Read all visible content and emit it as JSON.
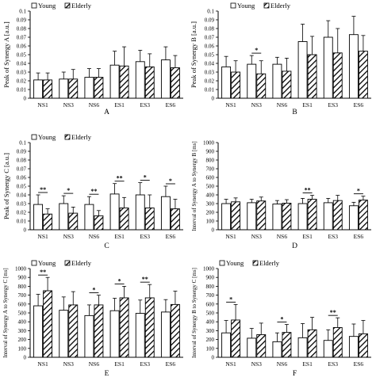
{
  "legend_labels": {
    "young": "Young",
    "elderly": "Elderly"
  },
  "colors": {
    "young_fill": "#ffffff",
    "elderly_hatch": "#000000",
    "axis": "#000000",
    "error_bar": "#000000"
  },
  "chart_data": [
    {
      "id": "A",
      "type": "bar",
      "panel_label": "A",
      "ylabel": "Peak of Synergy A [a.u.]",
      "ylim": [
        0,
        0.1
      ],
      "yticks": [
        "0",
        "0.01",
        "0.02",
        "0.03",
        "0.04",
        "0.05",
        "0.06",
        "0.07",
        "0.08",
        "0.09",
        "0.1"
      ],
      "categories": [
        "NS1",
        "NS3",
        "NS6",
        "ES1",
        "ES3",
        "ES6"
      ],
      "legend_position": "top-left",
      "series": [
        {
          "name": "Young",
          "values": [
            0.021,
            0.022,
            0.024,
            0.038,
            0.042,
            0.044
          ],
          "errors": [
            0.008,
            0.008,
            0.01,
            0.016,
            0.013,
            0.015
          ]
        },
        {
          "name": "Elderly",
          "values": [
            0.021,
            0.022,
            0.024,
            0.037,
            0.036,
            0.035
          ],
          "errors": [
            0.008,
            0.011,
            0.01,
            0.022,
            0.015,
            0.014
          ]
        }
      ],
      "significance": [],
      "significance_label": "*"
    },
    {
      "id": "B",
      "type": "bar",
      "panel_label": "B",
      "ylabel": "Peak of Synergy B [a.u.]",
      "ylim": [
        0,
        0.1
      ],
      "yticks": [
        "0",
        "0.01",
        "0.02",
        "0.03",
        "0.04",
        "0.05",
        "0.06",
        "0.07",
        "0.08",
        "0.09",
        "0.1"
      ],
      "categories": [
        "NS1",
        "NS3",
        "NS6",
        "ES1",
        "ES3",
        "ES6"
      ],
      "legend_position": "top-center",
      "series": [
        {
          "name": "Young",
          "values": [
            0.036,
            0.039,
            0.039,
            0.065,
            0.07,
            0.073
          ],
          "errors": [
            0.012,
            0.01,
            0.008,
            0.02,
            0.019,
            0.021
          ]
        },
        {
          "name": "Elderly",
          "values": [
            0.03,
            0.028,
            0.031,
            0.05,
            0.052,
            0.054
          ],
          "errors": [
            0.013,
            0.015,
            0.015,
            0.021,
            0.028,
            0.018
          ]
        }
      ],
      "significance": [
        1
      ],
      "significance_label": "*"
    },
    {
      "id": "C",
      "type": "bar",
      "panel_label": "C",
      "ylabel": "Peak of Synergy C [a.u.]",
      "ylim": [
        0,
        0.1
      ],
      "yticks": [
        "0",
        "0.01",
        "0.02",
        "0.03",
        "0.04",
        "0.05",
        "0.06",
        "0.07",
        "0.08",
        "0.09",
        "0.1"
      ],
      "categories": [
        "NS1",
        "NS3",
        "NS6",
        "ES1",
        "ES3",
        "ES6"
      ],
      "legend_position": "top-left",
      "series": [
        {
          "name": "Young",
          "values": [
            0.029,
            0.03,
            0.029,
            0.041,
            0.04,
            0.038
          ],
          "errors": [
            0.011,
            0.009,
            0.009,
            0.012,
            0.014,
            0.012
          ]
        },
        {
          "name": "Elderly",
          "values": [
            0.018,
            0.019,
            0.016,
            0.025,
            0.025,
            0.024
          ],
          "errors": [
            0.006,
            0.007,
            0.006,
            0.012,
            0.015,
            0.011
          ]
        }
      ],
      "significance": [
        0,
        1,
        2,
        3,
        4,
        5
      ],
      "significance_labels": [
        "**",
        "*",
        "**",
        "**",
        "*",
        "*"
      ]
    },
    {
      "id": "D",
      "type": "bar",
      "panel_label": "D",
      "ylabel": "Interval of Synergy A to Synergy B [ms]",
      "ylim": [
        0,
        1000
      ],
      "yticks": [
        "0",
        "100",
        "200",
        "300",
        "400",
        "500",
        "600",
        "700",
        "800",
        "900",
        "1000"
      ],
      "categories": [
        "NS1",
        "NS3",
        "NS6",
        "ES1",
        "ES3",
        "ES6"
      ],
      "legend_position": "none",
      "series": [
        {
          "name": "Young",
          "values": [
            300,
            310,
            295,
            300,
            310,
            275
          ],
          "errors": [
            50,
            40,
            40,
            60,
            50,
            40
          ]
        },
        {
          "name": "Elderly",
          "values": [
            320,
            330,
            305,
            350,
            335,
            340
          ],
          "errors": [
            45,
            45,
            40,
            45,
            60,
            45
          ]
        }
      ],
      "significance": [
        3,
        5
      ],
      "significance_labels": [
        "**",
        "*"
      ]
    },
    {
      "id": "E",
      "type": "bar",
      "panel_label": "E",
      "ylabel": "Interval of Synergy A to Synergy C [ms]",
      "ylim": [
        0,
        1000
      ],
      "yticks": [
        "0",
        "100",
        "200",
        "300",
        "400",
        "500",
        "600",
        "700",
        "800",
        "900",
        "1000"
      ],
      "categories": [
        "NS1",
        "NS3",
        "NS6",
        "ES1",
        "ES3",
        "ES6"
      ],
      "legend_position": "top-left",
      "series": [
        {
          "name": "Young",
          "values": [
            580,
            530,
            470,
            525,
            495,
            510
          ],
          "errors": [
            130,
            150,
            120,
            140,
            150,
            140
          ]
        },
        {
          "name": "Elderly",
          "values": [
            750,
            590,
            590,
            670,
            670,
            595
          ],
          "errors": [
            150,
            150,
            110,
            130,
            150,
            150
          ]
        }
      ],
      "significance": [
        0,
        2,
        3,
        4
      ],
      "significance_labels": [
        "**",
        "*",
        "*",
        "**"
      ]
    },
    {
      "id": "F",
      "type": "bar",
      "panel_label": "F",
      "ylabel": "Interval of Synergy B to Synergy C [ms]",
      "ylim": [
        0,
        1000
      ],
      "yticks": [
        "0",
        "100",
        "200",
        "300",
        "400",
        "500",
        "600",
        "700",
        "800",
        "900",
        "1000"
      ],
      "categories": [
        "NS1",
        "NS3",
        "NS6",
        "ES1",
        "ES3",
        "ES6"
      ],
      "legend_position": "top-left",
      "series": [
        {
          "name": "Young",
          "values": [
            275,
            215,
            175,
            220,
            190,
            235
          ],
          "errors": [
            140,
            110,
            100,
            160,
            120,
            140
          ]
        },
        {
          "name": "Elderly",
          "values": [
            420,
            255,
            280,
            310,
            335,
            265
          ],
          "errors": [
            175,
            130,
            90,
            140,
            110,
            150
          ]
        }
      ],
      "significance": [
        0,
        2,
        4
      ],
      "significance_labels": [
        "*",
        "*",
        "**"
      ]
    }
  ]
}
